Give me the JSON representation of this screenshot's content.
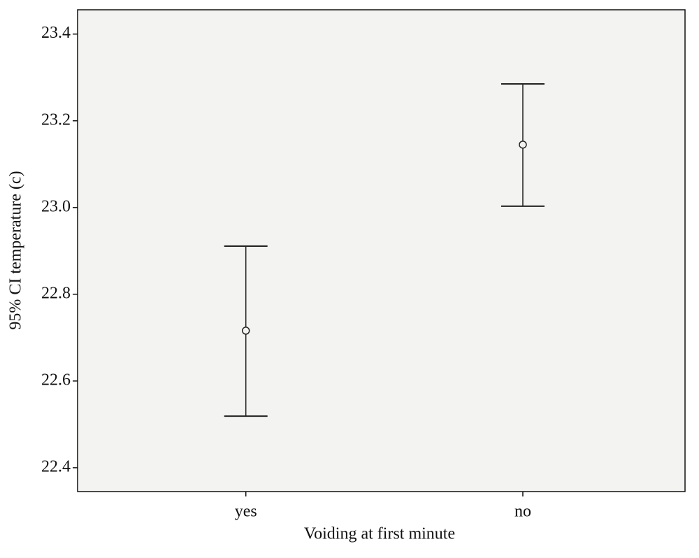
{
  "chart_data": {
    "type": "errorbar",
    "x_label": "Voiding at first minute",
    "y_label": "95% CI temperature (c)",
    "categories": [
      "yes",
      "no"
    ],
    "series": [
      {
        "values": [
          22.716,
          23.145
        ],
        "lower": [
          22.519,
          23.003
        ],
        "upper": [
          22.911,
          23.285
        ],
        "color": "#222222"
      }
    ],
    "ylim": [
      22.345,
      23.456
    ],
    "yticks": [
      22.4,
      22.6,
      22.8,
      {
        "value": 23,
        "label": "23.0"
      },
      23.2,
      23.4
    ],
    "background": "#f3f3f1"
  }
}
